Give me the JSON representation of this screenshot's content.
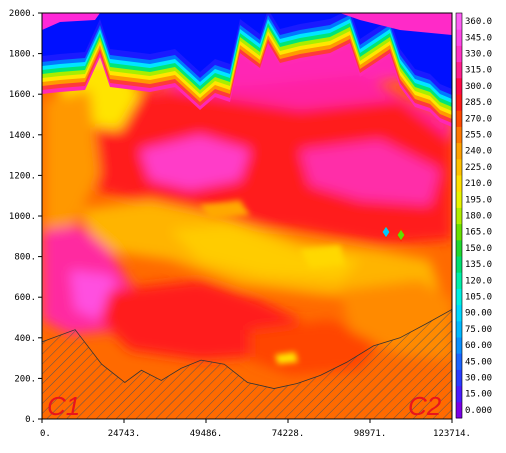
{
  "chart_data": {
    "type": "heatmap",
    "title": "",
    "xlabel": "",
    "ylabel": "",
    "xlim": [
      0,
      123714
    ],
    "ylim": [
      0,
      2000
    ],
    "x_ticks": [
      "0.",
      "24743.",
      "49486.",
      "74228.",
      "98971.",
      "123714."
    ],
    "y_ticks": [
      "0.",
      "200.",
      "400.",
      "600.",
      "800.",
      "1000.",
      "1200.",
      "1400.",
      "1600.",
      "1800.",
      "2000."
    ],
    "colorbar": {
      "levels": [
        "0.000",
        "15.00",
        "30.00",
        "45.00",
        "60.00",
        "75.00",
        "90.00",
        "105.0",
        "120.0",
        "135.0",
        "150.0",
        "165.0",
        "180.0",
        "195.0",
        "210.0",
        "225.0",
        "240.0",
        "255.0",
        "270.0",
        "285.0",
        "300.0",
        "315.0",
        "330.0",
        "345.0",
        "360.0"
      ],
      "colors": [
        "#7a00e6",
        "#4a1cff",
        "#2a3cff",
        "#1a64ff",
        "#0a90ff",
        "#00b8ff",
        "#00d8ff",
        "#00f0e0",
        "#00f0a8",
        "#00e070",
        "#20d830",
        "#68e000",
        "#b0ee00",
        "#e8f400",
        "#ffe000",
        "#ffc000",
        "#ffa000",
        "#ff7800",
        "#ff4800",
        "#ff1a1a",
        "#ff0a46",
        "#ff1e8c",
        "#ff32c4",
        "#ff46e6",
        "#ff5ef4"
      ]
    },
    "terrain_profile": {
      "x": [
        0,
        10000,
        18000,
        25000,
        30000,
        36000,
        42000,
        48000,
        55000,
        62000,
        70000,
        77000,
        84000,
        92000,
        100000,
        108000,
        116000,
        123714
      ],
      "y": [
        380,
        440,
        270,
        180,
        240,
        190,
        250,
        290,
        270,
        180,
        150,
        175,
        215,
        280,
        360,
        400,
        470,
        540
      ]
    },
    "corner_labels": {
      "left": "C1",
      "right": "C2"
    }
  }
}
